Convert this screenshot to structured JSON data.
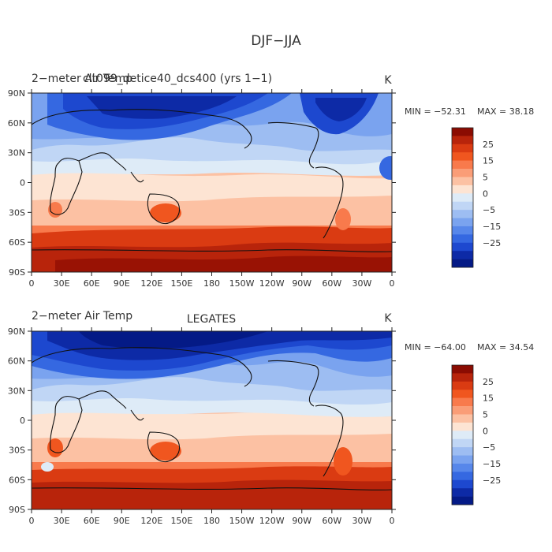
{
  "figure_title": "DJF−JJA",
  "panels": [
    {
      "left_label": "2−meter Air Temp",
      "center_label": "clt099_detice40_dcs400 (yrs 1−1)",
      "units": "K",
      "min_text": "MIN = −52.31",
      "max_text": "MAX =  38.18"
    },
    {
      "left_label": "2−meter Air Temp",
      "center_label": "LEGATES",
      "units": "K",
      "min_text": "MIN = −64.00",
      "max_text": "MAX =  34.54"
    }
  ],
  "lat_ticks": [
    "90N",
    "60N",
    "30N",
    "0",
    "30S",
    "60S",
    "90S"
  ],
  "lon_ticks": [
    "0",
    "30E",
    "60E",
    "90E",
    "120E",
    "150E",
    "180",
    "150W",
    "120W",
    "90W",
    "60W",
    "30W",
    "0"
  ],
  "colorbar": {
    "labels": [
      "25",
      "15",
      "5",
      "0",
      "−5",
      "−15",
      "−25"
    ],
    "colors": [
      "#8b0c02",
      "#b8240b",
      "#da3b12",
      "#f0561f",
      "#f87a4c",
      "#fa9d77",
      "#fcc1a3",
      "#fde4d3",
      "#deebf7",
      "#c0d6f5",
      "#9dbdf2",
      "#7aa3ef",
      "#5787ea",
      "#3568e1",
      "#1d48cf",
      "#0d2aa6",
      "#041a86"
    ]
  }
}
